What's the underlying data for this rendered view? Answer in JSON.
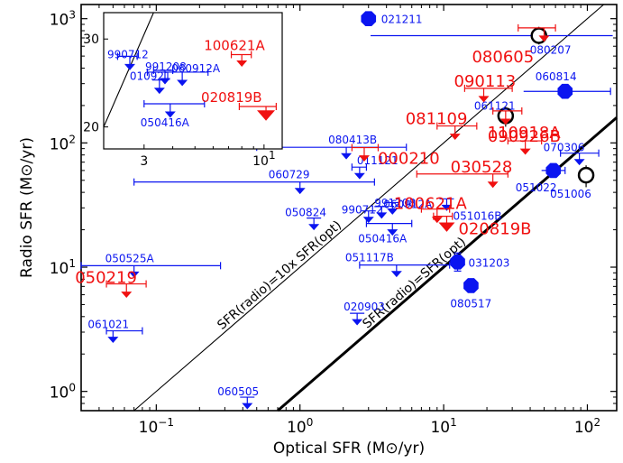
{
  "chart_data": {
    "type": "scatter",
    "title": "",
    "xlabel": "Optical SFR (M⊙/yr)",
    "ylabel": "Radio SFR (M⊙/yr)",
    "xscale": "log",
    "yscale": "log",
    "xlim": [
      0.03,
      160
    ],
    "ylim": [
      0.7,
      1300
    ],
    "x_ticks": [
      {
        "v": 0.1,
        "b": "10",
        "e": "−1"
      },
      {
        "v": 1,
        "b": "10",
        "e": "0"
      },
      {
        "v": 10,
        "b": "10",
        "e": "1"
      },
      {
        "v": 100,
        "b": "10",
        "e": "2"
      }
    ],
    "y_ticks": [
      {
        "v": 1,
        "b": "10",
        "e": "0"
      },
      {
        "v": 10,
        "b": "10",
        "e": "1"
      },
      {
        "v": 100,
        "b": "10",
        "e": "2"
      },
      {
        "v": 1000,
        "b": "10",
        "e": "3"
      }
    ],
    "grid": false,
    "colors": {
      "detection": "#0a14f0",
      "upper_limit": "#f01010",
      "open": "#000000"
    },
    "reference_lines": [
      {
        "label": "SFR(radio)=10x SFR(opt)",
        "factor": 10,
        "style": "thin"
      },
      {
        "label": "SFR(radio)=SFR(opt)",
        "factor": 1,
        "style": "thick"
      }
    ],
    "blue_upper_limits": [
      {
        "name": "080413B",
        "x": 2.1,
        "y": 78,
        "xerr": [
          0.5,
          5.5
        ]
      },
      {
        "name": "011121",
        "x": 2.6,
        "y": 54,
        "xerr": [
          2.3,
          2.9
        ]
      },
      {
        "name": "060729",
        "x": 1.0,
        "y": 41,
        "xerr": [
          0.07,
          3.3
        ]
      },
      {
        "name": "050824",
        "x": 1.25,
        "y": 21
      },
      {
        "name": "990712",
        "x": 3.0,
        "y": 24
      },
      {
        "name": "991208",
        "x": 3.7,
        "y": 26
      },
      {
        "name": "060912A",
        "x": 4.4,
        "y": 28
      },
      {
        "name": "050416A",
        "x": 4.4,
        "y": 19,
        "xerr": [
          2.9,
          6.0
        ]
      },
      {
        "name": "051016B",
        "x": 10.5,
        "y": 30
      },
      {
        "name": "050525A",
        "x": 0.07,
        "y": 8.7,
        "xerr": [
          0.03,
          0.28
        ]
      },
      {
        "name": "051117B",
        "x": 4.7,
        "y": 8.8,
        "xerr": [
          2.6,
          11
        ]
      },
      {
        "name": "020903",
        "x": 2.5,
        "y": 3.6
      },
      {
        "name": "061021",
        "x": 0.05,
        "y": 2.6,
        "xerr": [
          0.045,
          0.08
        ]
      },
      {
        "name": "060505",
        "x": 0.43,
        "y": 0.76
      },
      {
        "name": "070306",
        "x": 88,
        "y": 70,
        "xerr": [
          65,
          120
        ]
      }
    ],
    "blue_detections": [
      {
        "name": "021211",
        "x": 3.0,
        "y": 1000
      },
      {
        "name": "060814",
        "x": 70,
        "y": 260,
        "xerr": [
          36,
          145
        ]
      },
      {
        "name": "051022",
        "x": 58,
        "y": 60,
        "xerr": [
          48,
          70
        ]
      },
      {
        "name": "031203",
        "x": 12.5,
        "y": 11,
        "yerr": [
          9.3,
          13
        ]
      },
      {
        "name": "080517",
        "x": 15.5,
        "y": 7.1
      }
    ],
    "open_circles": [
      {
        "name": "080207",
        "x": 46,
        "y": 730,
        "xerr": [
          3.1,
          150
        ],
        "yerr": [
          620,
          860
        ]
      },
      {
        "name": "061121",
        "x": 27,
        "y": 165,
        "yerr": [
          135,
          195
        ]
      },
      {
        "name": "051006",
        "x": 98,
        "y": 55,
        "yerr": [
          44,
          66
        ]
      }
    ],
    "red_upper_limits": [
      {
        "name": "080605",
        "x": 50,
        "y": 690,
        "xerr": [
          33,
          60
        ]
      },
      {
        "name": "090113",
        "x": 19,
        "y": 225,
        "xerr": [
          14,
          30
        ]
      },
      {
        "name": "081109",
        "x": 12,
        "y": 112,
        "xerr": [
          9,
          17
        ]
      },
      {
        "name": "090926B",
        "x": 27,
        "y": 148,
        "xerr": [
          22,
          35
        ]
      },
      {
        "name": "110918A",
        "x": 37,
        "y": 85,
        "xerr": [
          28,
          48
        ]
      },
      {
        "name": "000210",
        "x": 2.8,
        "y": 75,
        "xerr": [
          2.3,
          3.5
        ]
      },
      {
        "name": "030528",
        "x": 22,
        "y": 46,
        "xerr": [
          6.5,
          28
        ]
      },
      {
        "name": "100621A",
        "x": 9,
        "y": 24,
        "xerr": [
          7,
          11
        ]
      },
      {
        "name": "020819B",
        "x": 10.5,
        "y": 21,
        "xerr": [
          8.5,
          11.5
        ],
        "big": true
      },
      {
        "name": "050219",
        "x": 0.062,
        "y": 6.0,
        "xerr": [
          0.045,
          0.085
        ]
      }
    ],
    "inset": {
      "xlim": [
        2,
        12
      ],
      "ylim": [
        17.5,
        33
      ],
      "x_ticks": [
        {
          "v": 3,
          "b": "3",
          "e": ""
        },
        {
          "v": 10,
          "b": "10",
          "e": "1"
        }
      ],
      "y_ticks": [
        {
          "v": 20,
          "label": "20"
        },
        {
          "v": 30,
          "label": "30"
        }
      ],
      "blue_upper_limits": [
        {
          "name": "990712",
          "x": 2.6,
          "y": 26.8,
          "xerr": [
            2.3,
            2.8
          ]
        },
        {
          "name": "991208",
          "x": 3.7,
          "y": 25.2,
          "xerr": [
            3.3,
            4.0
          ]
        },
        {
          "name": "060912A",
          "x": 4.4,
          "y": 25.0,
          "xerr": [
            3.1,
            5.7
          ]
        },
        {
          "name": "010921",
          "x": 3.5,
          "y": 24.1
        },
        {
          "name": "050416A",
          "x": 3.9,
          "y": 21.4,
          "xerr": [
            3.0,
            5.5
          ]
        }
      ],
      "red_upper_limits": [
        {
          "name": "100621A",
          "x": 8.0,
          "y": 27.2,
          "xerr": [
            7.2,
            8.8
          ]
        },
        {
          "name": "020819B",
          "x": 10.2,
          "y": 21.3,
          "xerr": [
            7.8,
            11.3
          ],
          "big": true
        }
      ]
    }
  }
}
